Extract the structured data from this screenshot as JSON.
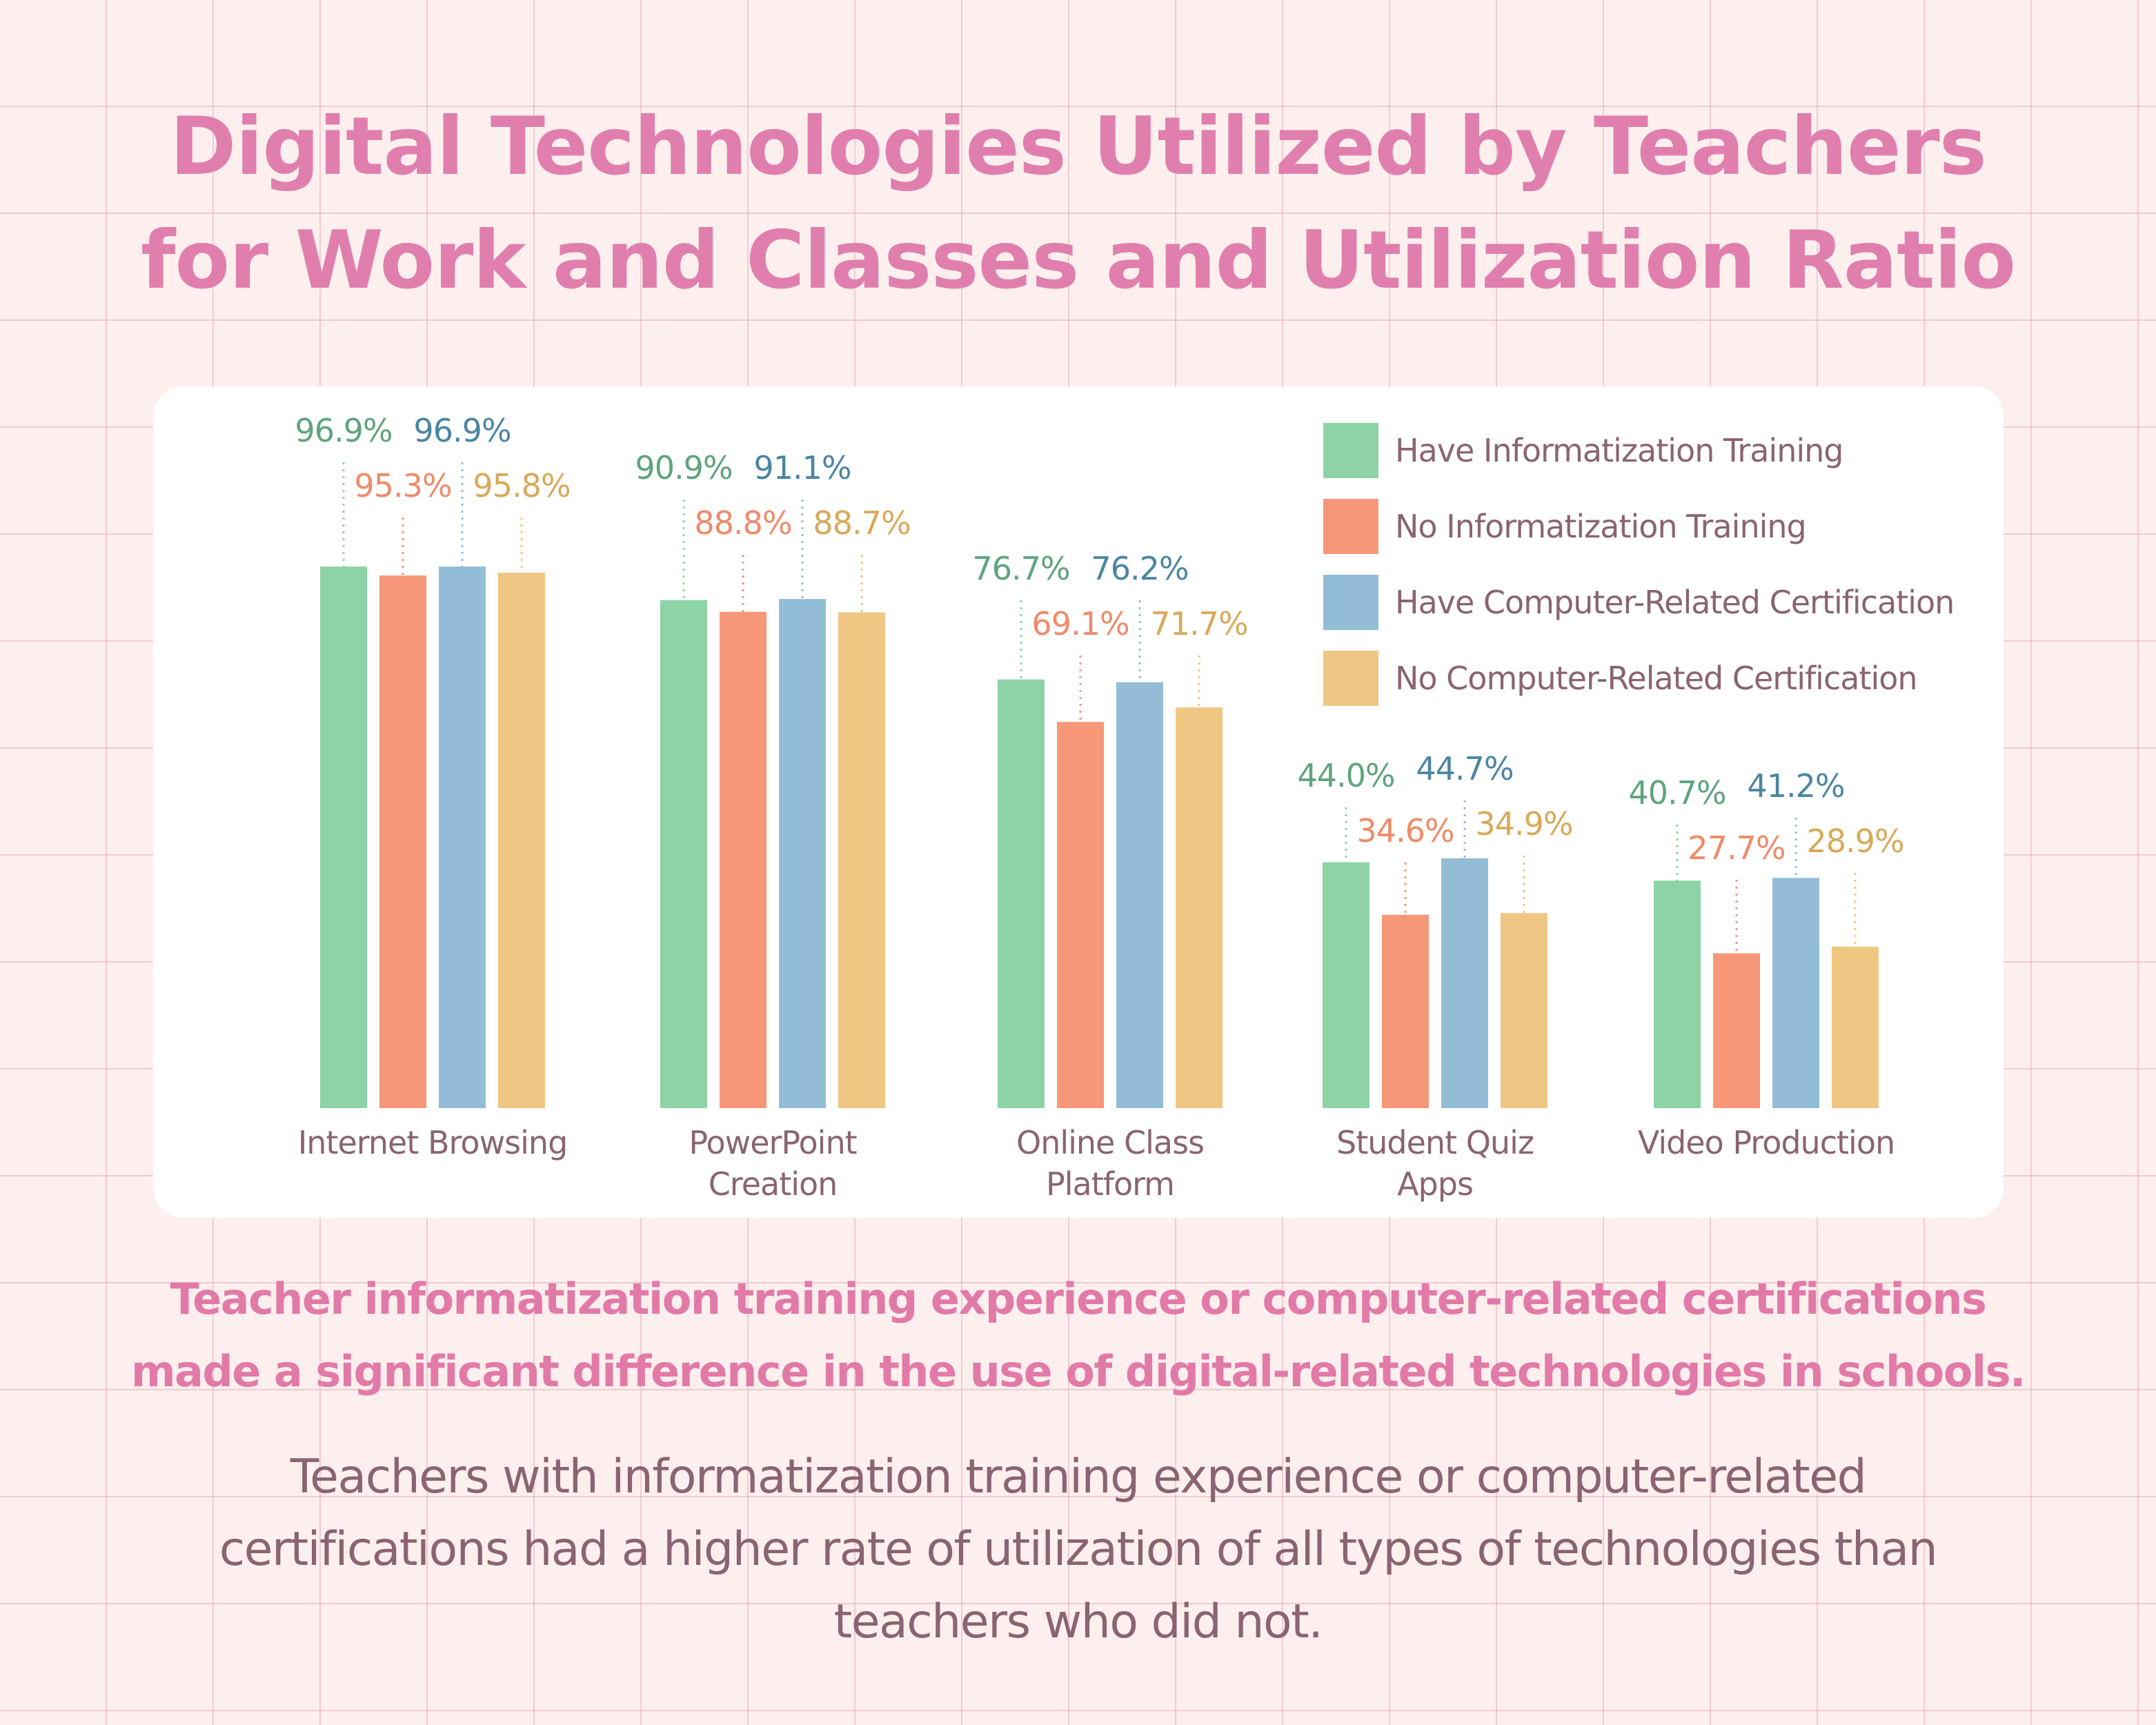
{
  "title": {
    "line1": "Digital Technologies Utilized by Teachers",
    "line2": "for Work and Classes and Utilization Ratio"
  },
  "colors": {
    "title": "#e07fad",
    "green": "#8dd3a5",
    "orange": "#f69778",
    "blue": "#93bdd6",
    "yellow": "#f0c683",
    "green_label": "#5fa47d",
    "orange_label": "#f08a68",
    "blue_label": "#4b86a1",
    "yellow_label": "#d9a95a",
    "category_label": "#8a6472"
  },
  "chart_data": {
    "type": "bar",
    "value_suffix": "%",
    "ylim": [
      0,
      100
    ],
    "grid": false,
    "legend_position": "top-right",
    "categories": [
      [
        "Internet Browsing"
      ],
      [
        "PowerPoint",
        "Creation"
      ],
      [
        "Online Class",
        "Platform"
      ],
      [
        "Student Quiz",
        "Apps"
      ],
      [
        "Video Production"
      ]
    ],
    "series": [
      {
        "name": "Have Informatization Training",
        "color": "#8dd3a5",
        "label_color": "#5fa47d",
        "values": [
          96.9,
          90.9,
          76.7,
          44.0,
          40.7
        ]
      },
      {
        "name": "No Informatization Training",
        "color": "#f69778",
        "label_color": "#f08a68",
        "values": [
          95.3,
          88.8,
          69.1,
          34.6,
          27.7
        ]
      },
      {
        "name": "Have Computer-Related Certification",
        "color": "#93bdd6",
        "label_color": "#4b86a1",
        "values": [
          96.9,
          91.1,
          76.2,
          44.7,
          41.2
        ]
      },
      {
        "name": "No Computer-Related Certification",
        "color": "#f0c683",
        "label_color": "#d9a95a",
        "values": [
          95.8,
          88.7,
          71.7,
          34.9,
          28.9
        ]
      }
    ]
  },
  "subhead": {
    "line1": "Teacher informatization training experience or computer-related certifications",
    "line2": "made a significant difference in the use of digital-related technologies in schools."
  },
  "body": {
    "line1": "Teachers with informatization training experience or computer-related",
    "line2": "certifications had a higher rate of utilization of all types of technologies than",
    "line3": "teachers who did not."
  }
}
